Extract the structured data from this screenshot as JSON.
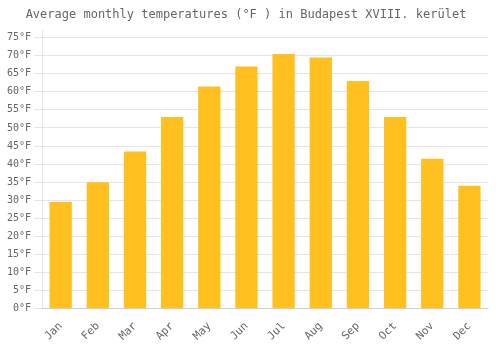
{
  "chart_data": {
    "type": "bar",
    "title": "Average monthly temperatures (°F ) in Budapest XVIII. kerület",
    "categories": [
      "Jan",
      "Feb",
      "Mar",
      "Apr",
      "May",
      "Jun",
      "Jul",
      "Aug",
      "Sep",
      "Oct",
      "Nov",
      "Dec"
    ],
    "values": [
      29.5,
      35.0,
      43.5,
      53.0,
      61.5,
      67.0,
      70.5,
      69.5,
      63.0,
      53.0,
      41.5,
      34.0
    ],
    "color": "#FFC020",
    "ylim": [
      0,
      77
    ],
    "yticks": [
      {
        "value": 0,
        "label": "0°F"
      },
      {
        "value": 5,
        "label": "5°F"
      },
      {
        "value": 10,
        "label": "10°F"
      },
      {
        "value": 15,
        "label": "15°F"
      },
      {
        "value": 20,
        "label": "20°F"
      },
      {
        "value": 25,
        "label": "25°F"
      },
      {
        "value": 30,
        "label": "30°F"
      },
      {
        "value": 35,
        "label": "35°F"
      },
      {
        "value": 40,
        "label": "40°F"
      },
      {
        "value": 45,
        "label": "45°F"
      },
      {
        "value": 50,
        "label": "50°F"
      },
      {
        "value": 55,
        "label": "55°F"
      },
      {
        "value": 60,
        "label": "60°F"
      },
      {
        "value": 65,
        "label": "65°F"
      },
      {
        "value": 70,
        "label": "70°F"
      },
      {
        "value": 75,
        "label": "75°F"
      }
    ],
    "grid": "y"
  }
}
